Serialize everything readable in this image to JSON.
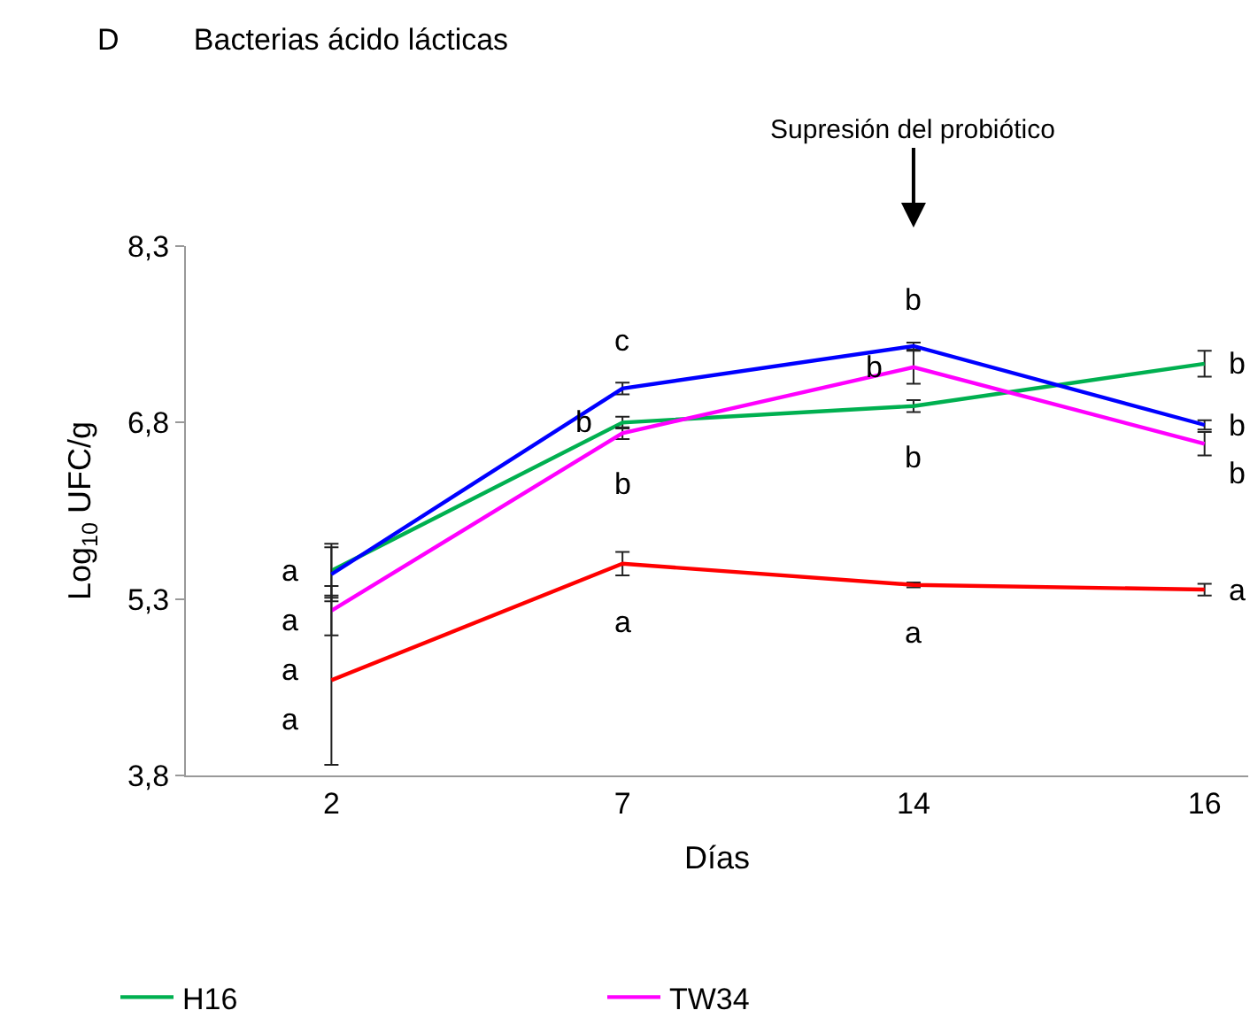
{
  "chart_data": {
    "type": "line",
    "title": "Bacterias ácido lácticas",
    "xlabel": "Días",
    "ylabel": "Log$_{10}$ UFC/g",
    "categories": [
      "2",
      "7",
      "14",
      "16"
    ],
    "series": [
      {
        "name": "H16",
        "color": "#00b050",
        "values": [
          5.54,
          6.8,
          6.94,
          7.3
        ],
        "errors": [
          0.23,
          0.05,
          0.05,
          0.11
        ],
        "value_labels": [
          "a",
          "b",
          "b",
          "b"
        ]
      },
      {
        "name": "TW34",
        "color": "#ff00ff",
        "values": [
          5.2,
          6.71,
          7.27,
          6.62
        ],
        "errors": [
          0.21,
          0.05,
          0.14,
          0.1
        ],
        "value_labels": [
          "a",
          "b",
          "b",
          "b"
        ]
      },
      {
        "color": "#0000ff",
        "values": [
          5.51,
          7.09,
          7.45,
          6.78
        ],
        "errors": [
          0.23,
          0.05,
          0.03,
          0.04
        ],
        "value_labels": [
          "a",
          "c",
          "b",
          "b"
        ]
      },
      {
        "color": "#ff0000",
        "values": [
          4.61,
          5.6,
          5.42,
          5.38
        ],
        "errors": [
          0.72,
          0.1,
          0.02,
          0.05
        ],
        "value_labels": [
          "a",
          "a",
          "a",
          "a"
        ]
      }
    ],
    "ylim": [
      3.8,
      8.3
    ],
    "yticks": [
      {
        "value": 3.8,
        "label": "3,8"
      },
      {
        "value": 5.3,
        "label": "5,3"
      },
      {
        "value": 6.8,
        "label": "6,8"
      },
      {
        "value": 8.3,
        "label": "8,3"
      }
    ],
    "grid": false,
    "legend": "bottom",
    "line_style": "solid",
    "annotations": [
      "D",
      "Supresión del probiótico"
    ]
  }
}
